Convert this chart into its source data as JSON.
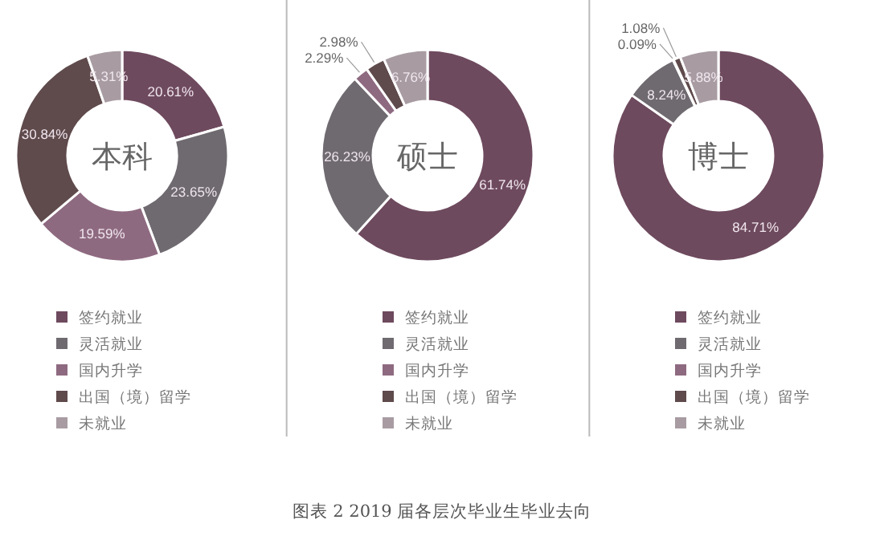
{
  "chart_data": [
    {
      "type": "donut",
      "title": "本科",
      "categories": [
        "签约就业",
        "灵活就业",
        "国内升学",
        "出国（境）留学",
        "未就业"
      ],
      "values": [
        20.61,
        23.65,
        19.59,
        30.84,
        5.31
      ],
      "value_labels": [
        "20.61%",
        "23.65%",
        "19.59%",
        "30.84%",
        "5.31%"
      ],
      "colors": [
        "#6e4a5e",
        "#6f6a70",
        "#8e6a80",
        "#5f4a4c",
        "#a89ca2"
      ],
      "legend": "bottom"
    },
    {
      "type": "donut",
      "title": "硕士",
      "categories": [
        "签约就业",
        "灵活就业",
        "国内升学",
        "出国（境）留学",
        "未就业"
      ],
      "values": [
        61.74,
        26.23,
        2.29,
        2.98,
        6.76
      ],
      "value_labels": [
        "61.74%",
        "26.23%",
        "2.29%",
        "2.98%",
        "6.76%"
      ],
      "colors": [
        "#6e4a5e",
        "#6f6a70",
        "#8e6a80",
        "#5f4a4c",
        "#a89ca2"
      ],
      "legend": "bottom",
      "annotations": [
        "图表 2  2019 届各层次毕业生毕业去向"
      ]
    },
    {
      "type": "donut",
      "title": "博士",
      "categories": [
        "签约就业",
        "灵活就业",
        "国内升学",
        "出国（境）留学",
        "未就业"
      ],
      "values": [
        84.71,
        8.24,
        0.09,
        1.08,
        5.88
      ],
      "value_labels": [
        "84.71%",
        "8.24%",
        "0.09%",
        "1.08%",
        "5.88%"
      ],
      "colors": [
        "#6e4a5e",
        "#6f6a70",
        "#8e6a80",
        "#5f4a4c",
        "#a89ca2"
      ],
      "legend": "bottom"
    }
  ]
}
